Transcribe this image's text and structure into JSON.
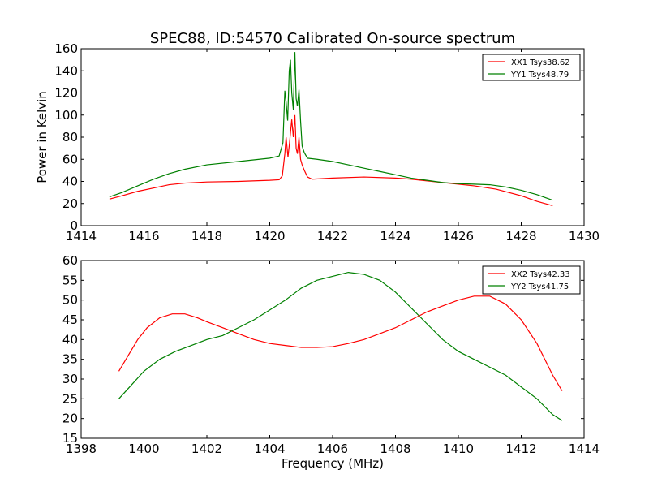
{
  "chart_data": [
    {
      "type": "line",
      "title": "SPEC88, ID:54570 Calibrated On-source spectrum",
      "xlabel": "",
      "ylabel": "Power in Kelvin",
      "xlim": [
        1414,
        1430
      ],
      "ylim": [
        0,
        160
      ],
      "xticks": [
        1414,
        1416,
        1418,
        1420,
        1422,
        1424,
        1426,
        1428,
        1430
      ],
      "yticks": [
        0,
        20,
        40,
        60,
        80,
        100,
        120,
        140,
        160
      ],
      "legend_position": "top-right",
      "series": [
        {
          "name": "XX1 Tsys38.62",
          "color": "#ff0000",
          "points": [
            [
              1414.9,
              24
            ],
            [
              1415.3,
              27
            ],
            [
              1415.8,
              31
            ],
            [
              1416.3,
              34
            ],
            [
              1416.8,
              37
            ],
            [
              1417.3,
              38.5
            ],
            [
              1418,
              39.5
            ],
            [
              1419,
              40
            ],
            [
              1420,
              41
            ],
            [
              1420.3,
              41.5
            ],
            [
              1420.4,
              45
            ],
            [
              1420.48,
              65
            ],
            [
              1420.52,
              80
            ],
            [
              1420.58,
              62
            ],
            [
              1420.63,
              75
            ],
            [
              1420.7,
              96
            ],
            [
              1420.75,
              80
            ],
            [
              1420.8,
              100
            ],
            [
              1420.84,
              70
            ],
            [
              1420.88,
              65
            ],
            [
              1420.93,
              80
            ],
            [
              1420.98,
              60
            ],
            [
              1421.03,
              55
            ],
            [
              1421.1,
              50
            ],
            [
              1421.2,
              44
            ],
            [
              1421.35,
              42
            ],
            [
              1422,
              43
            ],
            [
              1423,
              44
            ],
            [
              1424,
              43
            ],
            [
              1424.5,
              42
            ],
            [
              1425.5,
              39
            ],
            [
              1426.5,
              36
            ],
            [
              1427.2,
              33
            ],
            [
              1428,
              27
            ],
            [
              1428.5,
              22
            ],
            [
              1429,
              18
            ]
          ]
        },
        {
          "name": "YY1 Tsys48.79",
          "color": "#008000",
          "points": [
            [
              1414.9,
              26
            ],
            [
              1415.3,
              30
            ],
            [
              1415.8,
              36
            ],
            [
              1416.3,
              42
            ],
            [
              1416.8,
              47
            ],
            [
              1417.3,
              51
            ],
            [
              1418,
              55
            ],
            [
              1419,
              58
            ],
            [
              1420,
              61
            ],
            [
              1420.3,
              63
            ],
            [
              1420.42,
              75
            ],
            [
              1420.48,
              122
            ],
            [
              1420.52,
              112
            ],
            [
              1420.57,
              95
            ],
            [
              1420.62,
              140
            ],
            [
              1420.66,
              150
            ],
            [
              1420.7,
              120
            ],
            [
              1420.75,
              105
            ],
            [
              1420.8,
              157
            ],
            [
              1420.84,
              115
            ],
            [
              1420.88,
              108
            ],
            [
              1420.93,
              123
            ],
            [
              1420.98,
              95
            ],
            [
              1421.03,
              72
            ],
            [
              1421.1,
              66
            ],
            [
              1421.2,
              61
            ],
            [
              1421.5,
              60
            ],
            [
              1422,
              58
            ],
            [
              1422.5,
              55
            ],
            [
              1423,
              52
            ],
            [
              1423.5,
              49
            ],
            [
              1424,
              46
            ],
            [
              1424.5,
              43
            ],
            [
              1425,
              41
            ],
            [
              1425.5,
              39
            ],
            [
              1426,
              38
            ],
            [
              1426.5,
              37.5
            ],
            [
              1427,
              37
            ],
            [
              1427.5,
              35
            ],
            [
              1428,
              32
            ],
            [
              1428.5,
              28
            ],
            [
              1429,
              23
            ]
          ]
        }
      ]
    },
    {
      "type": "line",
      "title": "",
      "xlabel": "Frequency (MHz)",
      "ylabel": "",
      "xlim": [
        1398,
        1414
      ],
      "ylim": [
        15,
        60
      ],
      "xticks": [
        1398,
        1400,
        1402,
        1404,
        1406,
        1408,
        1410,
        1412,
        1414
      ],
      "yticks": [
        15,
        20,
        25,
        30,
        35,
        40,
        45,
        50,
        55,
        60
      ],
      "legend_position": "top-right",
      "series": [
        {
          "name": "XX2 Tsys42.33",
          "color": "#ff0000",
          "points": [
            [
              1399.2,
              32
            ],
            [
              1399.5,
              36
            ],
            [
              1399.8,
              40
            ],
            [
              1400.1,
              43
            ],
            [
              1400.5,
              45.5
            ],
            [
              1400.9,
              46.5
            ],
            [
              1401.3,
              46.5
            ],
            [
              1401.7,
              45.5
            ],
            [
              1402,
              44.5
            ],
            [
              1402.5,
              43
            ],
            [
              1403,
              41.5
            ],
            [
              1403.5,
              40
            ],
            [
              1404,
              39
            ],
            [
              1404.5,
              38.5
            ],
            [
              1405,
              38
            ],
            [
              1405.5,
              38
            ],
            [
              1406,
              38.2
            ],
            [
              1406.5,
              39
            ],
            [
              1407,
              40
            ],
            [
              1407.5,
              41.5
            ],
            [
              1408,
              43
            ],
            [
              1408.5,
              45
            ],
            [
              1409,
              47
            ],
            [
              1409.5,
              48.5
            ],
            [
              1410,
              50
            ],
            [
              1410.5,
              51
            ],
            [
              1411,
              51
            ],
            [
              1411.5,
              49
            ],
            [
              1412,
              45
            ],
            [
              1412.5,
              39
            ],
            [
              1413,
              31
            ],
            [
              1413.3,
              27
            ]
          ]
        },
        {
          "name": "YY2 Tsys41.75",
          "color": "#008000",
          "points": [
            [
              1399.2,
              25
            ],
            [
              1399.6,
              28.5
            ],
            [
              1400,
              32
            ],
            [
              1400.5,
              35
            ],
            [
              1401,
              37
            ],
            [
              1401.5,
              38.5
            ],
            [
              1402,
              40
            ],
            [
              1402.5,
              41
            ],
            [
              1403,
              43
            ],
            [
              1403.5,
              45
            ],
            [
              1404,
              47.5
            ],
            [
              1404.5,
              50
            ],
            [
              1405,
              53
            ],
            [
              1405.5,
              55
            ],
            [
              1406,
              56
            ],
            [
              1406.5,
              57
            ],
            [
              1407,
              56.5
            ],
            [
              1407.5,
              55
            ],
            [
              1408,
              52
            ],
            [
              1408.5,
              48
            ],
            [
              1409,
              44
            ],
            [
              1409.5,
              40
            ],
            [
              1410,
              37
            ],
            [
              1410.5,
              35
            ],
            [
              1411,
              33
            ],
            [
              1411.5,
              31
            ],
            [
              1412,
              28
            ],
            [
              1412.5,
              25
            ],
            [
              1413,
              21
            ],
            [
              1413.3,
              19.5
            ]
          ]
        }
      ]
    }
  ]
}
